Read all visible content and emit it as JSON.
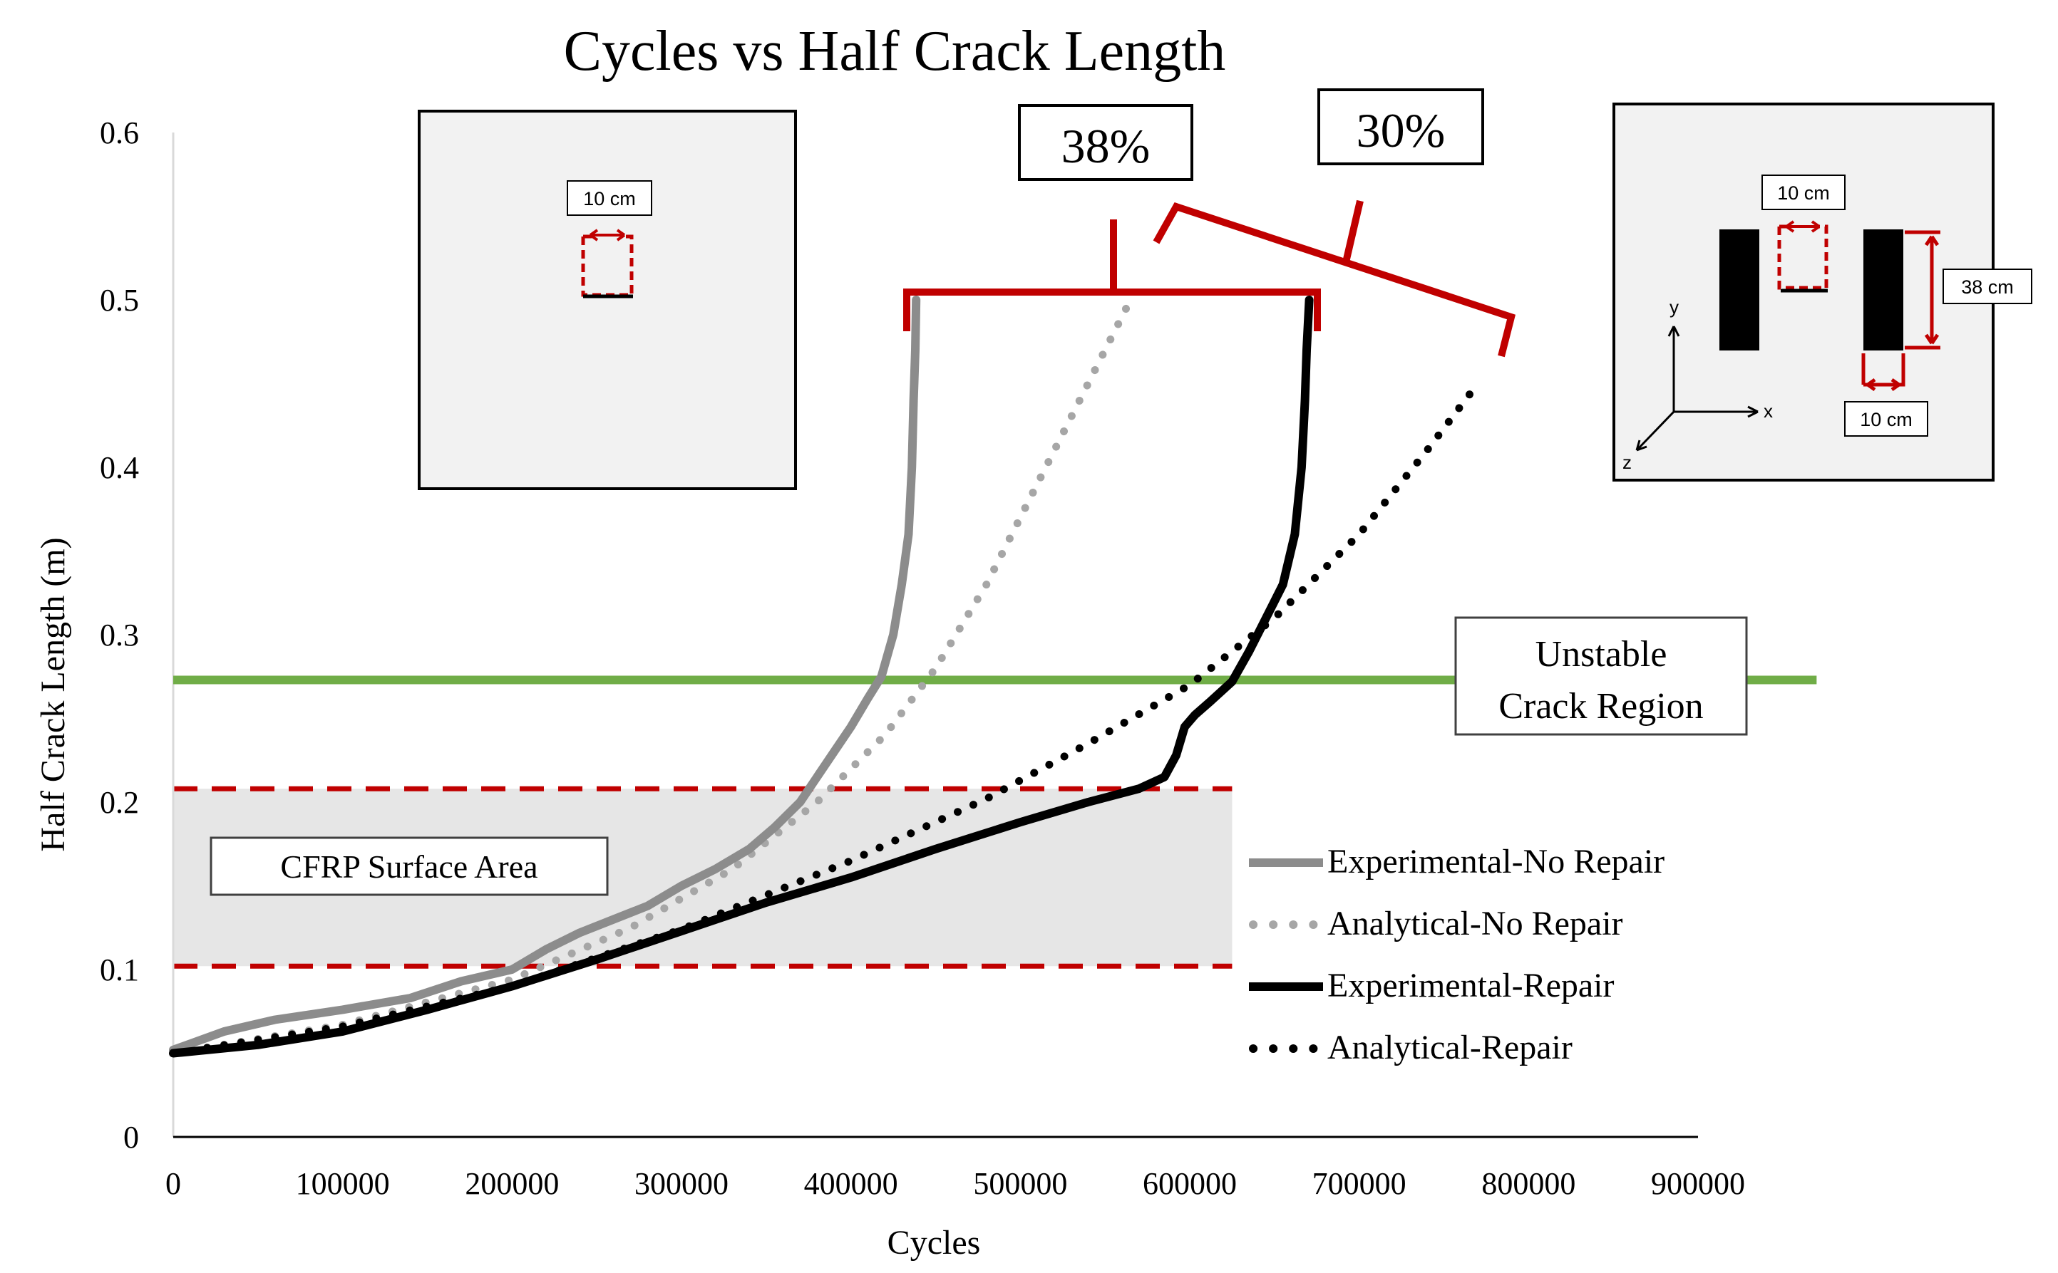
{
  "chart_data": {
    "type": "line",
    "title": "Cycles vs Half Crack Length",
    "xlabel": "Cycles",
    "ylabel": "Half Crack Length (m)",
    "xlim": [
      0,
      900000
    ],
    "ylim": [
      0,
      0.6
    ],
    "x_ticks": [
      0,
      100000,
      200000,
      300000,
      400000,
      500000,
      600000,
      700000,
      800000,
      900000
    ],
    "x_tick_labels": [
      "0",
      "100000",
      "200000",
      "300000",
      "400000",
      "500000",
      "600000",
      "700000",
      "800000",
      "900000"
    ],
    "y_ticks": [
      0,
      0.1,
      0.2,
      0.3,
      0.4,
      0.5,
      0.6
    ],
    "y_tick_labels": [
      "0",
      "0.1",
      "0.2",
      "0.3",
      "0.4",
      "0.5",
      "0.6"
    ],
    "grid": false,
    "legend_position": "lower-right",
    "series": [
      {
        "name": "Experimental-No Repair",
        "color": "#8c8c8c",
        "style": "solid-thick",
        "x": [
          0,
          30000,
          60000,
          100000,
          140000,
          170000,
          200000,
          220000,
          240000,
          260000,
          280000,
          300000,
          320000,
          340000,
          355000,
          370000,
          380000,
          390000,
          400000,
          410000,
          418000,
          425000,
          430000,
          434000,
          436000,
          437000,
          438000,
          438500
        ],
        "y": [
          0.052,
          0.063,
          0.07,
          0.076,
          0.083,
          0.093,
          0.1,
          0.112,
          0.122,
          0.13,
          0.138,
          0.15,
          0.16,
          0.172,
          0.185,
          0.2,
          0.215,
          0.23,
          0.245,
          0.262,
          0.275,
          0.3,
          0.33,
          0.36,
          0.4,
          0.44,
          0.47,
          0.5
        ]
      },
      {
        "name": "Analytical-No Repair",
        "color": "#a6a6a6",
        "style": "dotted",
        "x": [
          0,
          100000,
          200000,
          270000,
          330000,
          380000,
          420000,
          450000,
          480000,
          510000,
          540000,
          565000
        ],
        "y": [
          0.05,
          0.067,
          0.094,
          0.125,
          0.16,
          0.2,
          0.24,
          0.28,
          0.33,
          0.39,
          0.45,
          0.5
        ]
      },
      {
        "name": "Experimental-Repair",
        "color": "#000000",
        "style": "solid-thick",
        "x": [
          0,
          50000,
          100000,
          150000,
          200000,
          250000,
          300000,
          350000,
          400000,
          450000,
          500000,
          540000,
          570000,
          585000,
          592000,
          597000,
          603000,
          612000,
          625000,
          635000,
          645000,
          655000,
          662000,
          666000,
          668000,
          669000,
          670000,
          670500
        ],
        "y": [
          0.05,
          0.055,
          0.063,
          0.076,
          0.09,
          0.106,
          0.123,
          0.14,
          0.155,
          0.172,
          0.188,
          0.2,
          0.208,
          0.215,
          0.228,
          0.245,
          0.252,
          0.26,
          0.272,
          0.29,
          0.31,
          0.33,
          0.36,
          0.4,
          0.44,
          0.47,
          0.49,
          0.5
        ]
      },
      {
        "name": "Analytical-Repair",
        "color": "#000000",
        "style": "dotted",
        "x": [
          0,
          100000,
          200000,
          300000,
          400000,
          480000,
          540000,
          600000,
          650000,
          700000,
          740000,
          770000
        ],
        "y": [
          0.05,
          0.066,
          0.09,
          0.124,
          0.165,
          0.202,
          0.235,
          0.27,
          0.31,
          0.36,
          0.41,
          0.45
        ]
      }
    ],
    "reference_lines": [
      {
        "name": "Unstable Crack Region boundary",
        "y": 0.273,
        "x_range": [
          0,
          970000
        ],
        "color": "#70ad47"
      },
      {
        "name": "CFRP upper",
        "y": 0.208,
        "x_range": [
          0,
          625000
        ],
        "color": "#c00000",
        "style": "dashed"
      },
      {
        "name": "CFRP lower",
        "y": 0.102,
        "x_range": [
          0,
          625000
        ],
        "color": "#c00000",
        "style": "dashed"
      }
    ],
    "shaded_region": {
      "label": "CFRP Surface Area",
      "x_range": [
        0,
        625000
      ],
      "y_range": [
        0.102,
        0.208
      ],
      "color": "#e6e6e6"
    },
    "annotations": [
      {
        "text": "Unstable\nCrack Region",
        "lines": [
          "Unstable",
          "Crack Region"
        ],
        "at_x": 840000,
        "at_y": 0.275
      },
      {
        "text": "CFRP Surface Area",
        "at_x": 140000,
        "at_y": 0.16
      },
      {
        "text": "38%",
        "bracket_x": [
          435000,
          675000
        ],
        "bracket_y": 0.5,
        "color": "#c00000"
      },
      {
        "text": "30%",
        "bracket_x": [
          580000,
          790000
        ],
        "color": "#c00000"
      }
    ],
    "insets": [
      {
        "name": "no-repair-specimen",
        "dimension_label": "10 cm"
      },
      {
        "name": "repair-specimen",
        "crack_label": "10 cm",
        "height_label": "38 cm",
        "patch_width_label": "10 cm",
        "axes": [
          "y",
          "x",
          "z"
        ]
      }
    ]
  }
}
